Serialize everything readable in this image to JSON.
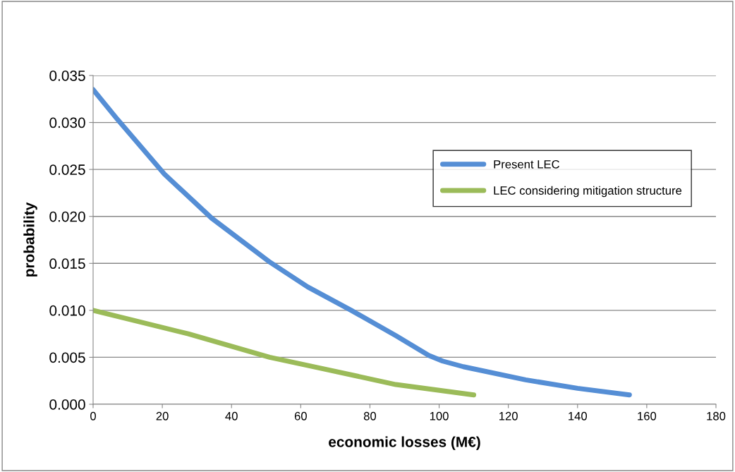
{
  "chart_data": {
    "type": "line",
    "xlabel": "economic losses (M€)",
    "ylabel": "probability",
    "xlim": [
      0,
      180
    ],
    "xticks": [
      0,
      20,
      40,
      60,
      80,
      100,
      120,
      140,
      160,
      180
    ],
    "ylim": [
      0,
      0.035
    ],
    "yticks": [
      {
        "value": 0,
        "label": "0.000"
      },
      {
        "value": 0.005,
        "label": "0.005"
      },
      {
        "value": 0.01,
        "label": "0.010"
      },
      {
        "value": 0.015,
        "label": "0.015"
      },
      {
        "value": 0.02,
        "label": "0.020"
      },
      {
        "value": 0.025,
        "label": "0.025"
      },
      {
        "value": 0.03,
        "label": "0.030"
      },
      {
        "value": 0.035,
        "label": "0.035"
      }
    ],
    "grid": "y",
    "legend": "upper right",
    "marker": "none",
    "line_style": "solid",
    "series": [
      {
        "name": "Present LEC",
        "color": "#558ed5",
        "x": [
          0,
          7.1,
          20.6,
          34.3,
          51.2,
          62,
          74.6,
          87.5,
          97,
          101,
          107,
          125,
          140,
          155
        ],
        "values": [
          0.0335,
          0.0303,
          0.0245,
          0.0198,
          0.0151,
          0.0125,
          0.01,
          0.0073,
          0.0052,
          0.0046,
          0.004,
          0.0026,
          0.0017,
          0.001
        ]
      },
      {
        "name": "LEC considering mitigation structure",
        "color": "#9bbb59",
        "x": [
          0,
          27.5,
          51,
          65,
          87.5,
          110
        ],
        "values": [
          0.01,
          0.0075,
          0.005,
          0.0039,
          0.0021,
          0.001
        ]
      }
    ]
  }
}
